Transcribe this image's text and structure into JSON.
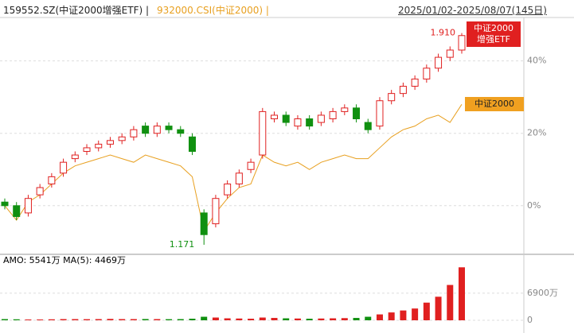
{
  "header": {
    "etf": "159552.SZ(中证2000增强ETF) |",
    "index": "932000.CSI(中证2000) |",
    "range": "2025/01/02-2025/08/07(145日)"
  },
  "volume_header": "AMO: 5541万  MA(5): 4469万",
  "chart_data": [
    {
      "type": "candlestick",
      "high_label": "1.910",
      "low_label": "1.171",
      "ylim": [
        -13,
        52
      ],
      "yticks": [
        {
          "value": 0,
          "label": "0%"
        },
        {
          "value": 20,
          "label": "20%"
        },
        {
          "value": 40,
          "label": "40%"
        }
      ],
      "grid": true,
      "series": [
        {
          "name": "中证2000增强ETF",
          "color": "#e02020",
          "open": [
            1,
            0,
            -2,
            3,
            6,
            9,
            13,
            15,
            16,
            17,
            18,
            19,
            22,
            20,
            22,
            21,
            19,
            -2,
            -5,
            3,
            6,
            10,
            14,
            24,
            25,
            22,
            24,
            23,
            24,
            26,
            27,
            23,
            22,
            29,
            31,
            33,
            35,
            38,
            41,
            43
          ],
          "close": [
            0,
            -3,
            2,
            5,
            8,
            12,
            14,
            16,
            17,
            18,
            19,
            21,
            20,
            22,
            21,
            20,
            15,
            -8,
            2,
            6,
            9,
            12,
            26,
            25,
            23,
            24,
            22,
            25,
            26,
            27,
            24,
            21,
            29,
            31,
            33,
            35,
            38,
            41,
            43,
            47
          ],
          "high": [
            2,
            1,
            3,
            6,
            9,
            13,
            15,
            17,
            18,
            19,
            20,
            22,
            23,
            23,
            23,
            22,
            20,
            -1,
            3,
            7,
            10,
            13,
            27,
            26,
            26,
            25,
            25,
            26,
            27,
            28,
            28,
            24,
            30,
            32,
            34,
            36,
            39,
            42,
            44,
            47.7
          ],
          "low": [
            -1,
            -4,
            -3,
            2,
            5,
            8,
            12,
            14,
            15,
            16,
            17,
            18,
            19,
            19,
            20,
            19,
            14,
            -10.8,
            -6,
            2,
            5,
            9,
            13,
            23,
            22,
            21,
            21,
            22,
            23,
            25,
            23,
            20,
            21,
            28,
            30,
            32,
            34,
            37,
            40,
            42
          ]
        },
        {
          "name": "中证2000",
          "color": "#e8a020",
          "values": [
            0,
            -4,
            1,
            3,
            6,
            9,
            11,
            12,
            13,
            14,
            13,
            12,
            14,
            13,
            12,
            11,
            8,
            -7,
            -2,
            2,
            5,
            6,
            14,
            12,
            11,
            12,
            10,
            12,
            13,
            14,
            13,
            13,
            16,
            19,
            21,
            22,
            24,
            25,
            23,
            28
          ]
        }
      ]
    },
    {
      "type": "bar",
      "ylim": [
        0,
        16400
      ],
      "yticks": [
        0,
        {
          "value": 6900,
          "label": "6900万"
        }
      ],
      "up_color": "#e02020",
      "down_color": "#109010",
      "values": [
        300,
        250,
        200,
        200,
        250,
        300,
        300,
        280,
        300,
        350,
        300,
        300,
        320,
        300,
        280,
        300,
        400,
        900,
        700,
        500,
        450,
        400,
        700,
        600,
        500,
        450,
        400,
        450,
        500,
        550,
        600,
        900,
        1500,
        2000,
        2500,
        3000,
        4500,
        6000,
        9000,
        13500
      ]
    }
  ]
}
